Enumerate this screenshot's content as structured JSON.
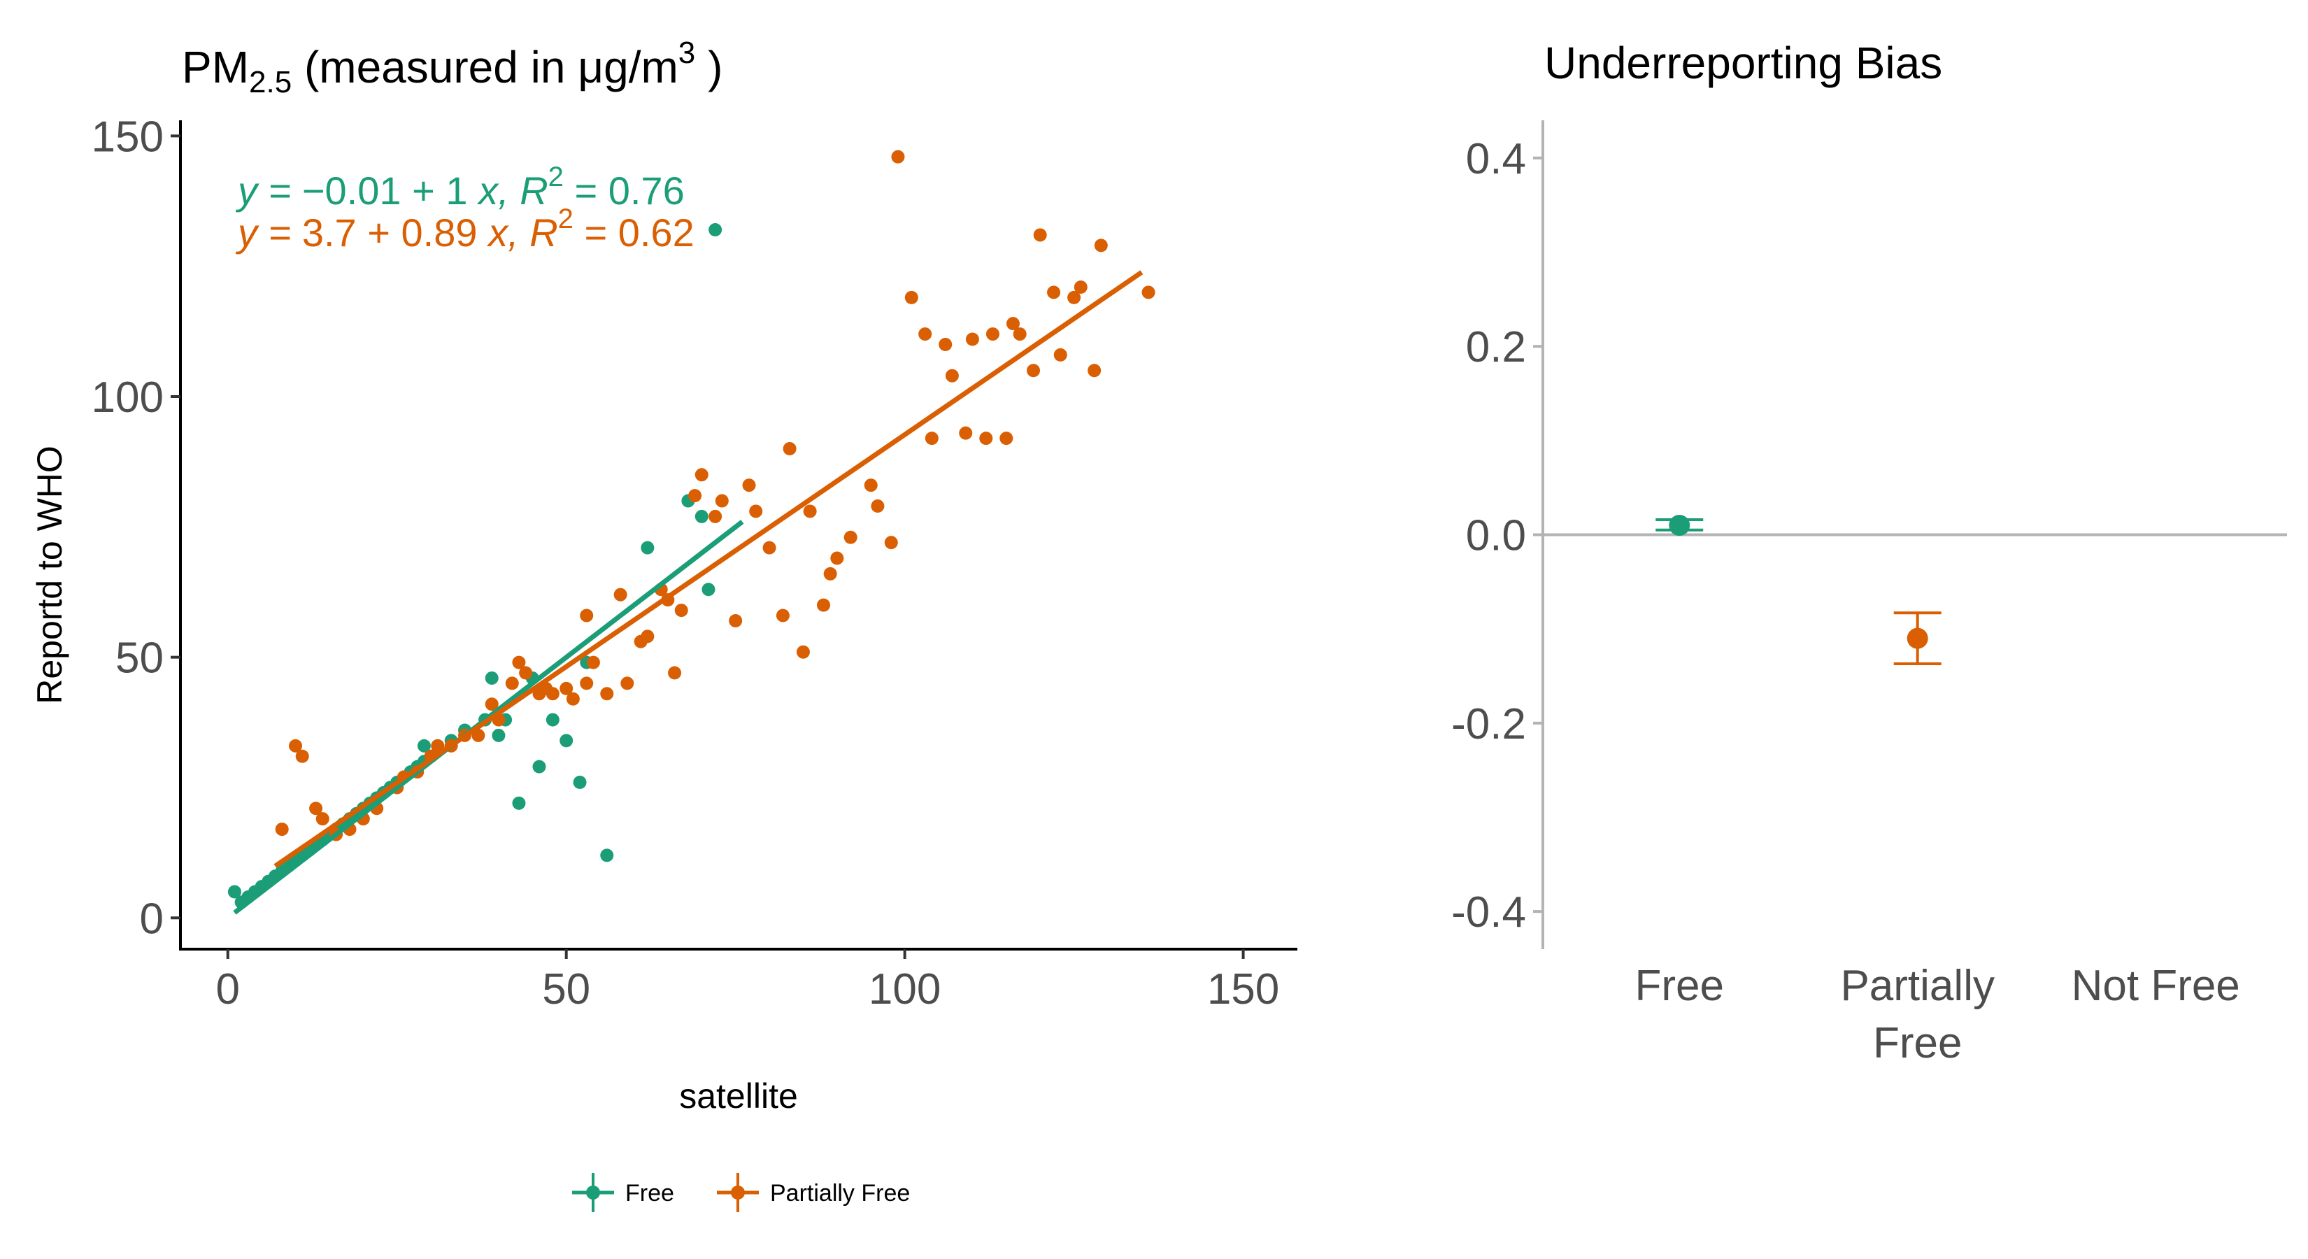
{
  "colors": {
    "free": "#1b9e77",
    "partially_free": "#d95f02",
    "zero_line": "#b3b3b3"
  },
  "chart_data": [
    {
      "type": "scatter",
      "title": "PM",
      "title_subscript": "2.5",
      "title_suffix": " (measured in  μg/m",
      "title_superscript": "3",
      "title_close": " )",
      "xlabel": "satellite",
      "ylabel": "Reportd to WHO",
      "xlim": [
        -7,
        158
      ],
      "ylim": [
        -6,
        153
      ],
      "xticks": [
        0,
        50,
        100,
        150
      ],
      "yticks": [
        0,
        50,
        100,
        150
      ],
      "grid": false,
      "legend_position": "bottom",
      "series": [
        {
          "name": "Free",
          "color": "#1b9e77",
          "points": [
            [
              1,
              5
            ],
            [
              2,
              3
            ],
            [
              3,
              4
            ],
            [
              4,
              5
            ],
            [
              5,
              6
            ],
            [
              6,
              7
            ],
            [
              7,
              8
            ],
            [
              8,
              9
            ],
            [
              9,
              10
            ],
            [
              10,
              11
            ],
            [
              11,
              12
            ],
            [
              12,
              13
            ],
            [
              13,
              14
            ],
            [
              14,
              15
            ],
            [
              15,
              16
            ],
            [
              16,
              17
            ],
            [
              17,
              18
            ],
            [
              18,
              19
            ],
            [
              19,
              20
            ],
            [
              20,
              21
            ],
            [
              21,
              22
            ],
            [
              22,
              23
            ],
            [
              23,
              24
            ],
            [
              24,
              25
            ],
            [
              25,
              26
            ],
            [
              26,
              27
            ],
            [
              27,
              28
            ],
            [
              28,
              29
            ],
            [
              29,
              30
            ],
            [
              30,
              31
            ],
            [
              29,
              33
            ],
            [
              31,
              33
            ],
            [
              33,
              34
            ],
            [
              35,
              36
            ],
            [
              38,
              38
            ],
            [
              39,
              46
            ],
            [
              40,
              35
            ],
            [
              41,
              38
            ],
            [
              43,
              22
            ],
            [
              45,
              46
            ],
            [
              46,
              29
            ],
            [
              48,
              38
            ],
            [
              50,
              34
            ],
            [
              52,
              26
            ],
            [
              53,
              49
            ],
            [
              56,
              12
            ],
            [
              62,
              71
            ],
            [
              68,
              80
            ],
            [
              70,
              77
            ],
            [
              71,
              63
            ],
            [
              72,
              132
            ]
          ],
          "fit": {
            "x": [
              1,
              76
            ],
            "y": [
              0.99,
              75.99
            ]
          }
        },
        {
          "name": "Partially Free",
          "color": "#d95f02",
          "points": [
            [
              8,
              17
            ],
            [
              10,
              33
            ],
            [
              11,
              31
            ],
            [
              13,
              21
            ],
            [
              14,
              19
            ],
            [
              16,
              16
            ],
            [
              18,
              17
            ],
            [
              20,
              19
            ],
            [
              22,
              21
            ],
            [
              25,
              25
            ],
            [
              26,
              27
            ],
            [
              28,
              28
            ],
            [
              30,
              31
            ],
            [
              31,
              33
            ],
            [
              33,
              33
            ],
            [
              35,
              35
            ],
            [
              37,
              35
            ],
            [
              39,
              41
            ],
            [
              40,
              38
            ],
            [
              42,
              45
            ],
            [
              43,
              49
            ],
            [
              44,
              47
            ],
            [
              46,
              43
            ],
            [
              47,
              44
            ],
            [
              48,
              43
            ],
            [
              50,
              44
            ],
            [
              51,
              42
            ],
            [
              53,
              45
            ],
            [
              53,
              58
            ],
            [
              54,
              49
            ],
            [
              56,
              43
            ],
            [
              58,
              62
            ],
            [
              59,
              45
            ],
            [
              61,
              53
            ],
            [
              62,
              54
            ],
            [
              64,
              63
            ],
            [
              65,
              61
            ],
            [
              66,
              47
            ],
            [
              67,
              59
            ],
            [
              69,
              81
            ],
            [
              70,
              85
            ],
            [
              72,
              77
            ],
            [
              73,
              80
            ],
            [
              75,
              57
            ],
            [
              77,
              83
            ],
            [
              78,
              78
            ],
            [
              80,
              71
            ],
            [
              82,
              58
            ],
            [
              83,
              90
            ],
            [
              85,
              51
            ],
            [
              86,
              78
            ],
            [
              88,
              60
            ],
            [
              89,
              66
            ],
            [
              90,
              69
            ],
            [
              92,
              73
            ],
            [
              95,
              83
            ],
            [
              96,
              79
            ],
            [
              98,
              72
            ],
            [
              99,
              146
            ],
            [
              101,
              119
            ],
            [
              103,
              112
            ],
            [
              104,
              92
            ],
            [
              106,
              110
            ],
            [
              107,
              104
            ],
            [
              109,
              93
            ],
            [
              110,
              111
            ],
            [
              112,
              92
            ],
            [
              113,
              112
            ],
            [
              115,
              92
            ],
            [
              116,
              114
            ],
            [
              117,
              112
            ],
            [
              119,
              105
            ],
            [
              120,
              131
            ],
            [
              122,
              120
            ],
            [
              123,
              108
            ],
            [
              125,
              119
            ],
            [
              126,
              121
            ],
            [
              128,
              105
            ],
            [
              129,
              129
            ],
            [
              136,
              120
            ]
          ],
          "fit": {
            "x": [
              7,
              135
            ],
            "y": [
              9.93,
              123.85
            ]
          }
        }
      ],
      "annotations": [
        {
          "name": "Free",
          "intercept": "−0.01",
          "slope": "1",
          "r2": "0.76",
          "color": "#1b9e77"
        },
        {
          "name": "Partially Free",
          "intercept": "3.7",
          "slope": "0.89",
          "r2": "0.62",
          "color": "#d95f02"
        }
      ]
    },
    {
      "type": "errorbar",
      "title": "Underreporting Bias",
      "categories": [
        "Free",
        "Partially Free",
        "Not Free"
      ],
      "category_labels": [
        [
          "Free"
        ],
        [
          "Partially",
          "Free"
        ],
        [
          "Not Free"
        ]
      ],
      "ylim": [
        -0.44,
        0.44
      ],
      "yticks": [
        -0.4,
        -0.2,
        0.0,
        0.2,
        0.4
      ],
      "ytick_labels": [
        "-0.4",
        "-0.2",
        "0.0",
        "0.2",
        "0.4"
      ],
      "reference_line": 0,
      "points": [
        {
          "category": "Free",
          "value": 0.01,
          "low": 0.005,
          "high": 0.016,
          "color": "#1b9e77"
        },
        {
          "category": "Partially Free",
          "value": -0.11,
          "low": -0.137,
          "high": -0.083,
          "color": "#d95f02"
        }
      ]
    }
  ],
  "legend": {
    "items": [
      {
        "label": "Free",
        "color": "#1b9e77"
      },
      {
        "label": "Partially Free",
        "color": "#d95f02"
      }
    ]
  }
}
